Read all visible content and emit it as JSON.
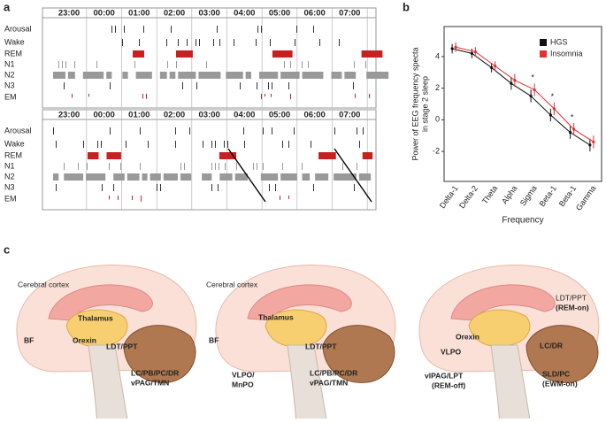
{
  "panel_a": {
    "label": "a",
    "hypnograms": [
      {
        "times": [
          "23:00",
          "00:00",
          "01:00",
          "02:00",
          "03:00",
          "04:00",
          "05:00",
          "06:00",
          "07:00"
        ],
        "rows": [
          "Arousal",
          "Wake",
          "REM",
          "N1",
          "N2",
          "N3",
          "EM"
        ]
      },
      {
        "times": [
          "23:00",
          "00:00",
          "01:00",
          "02:00",
          "03:00",
          "04:00",
          "05:00",
          "06:00",
          "07:00"
        ],
        "rows": [
          "Arousal",
          "Wake",
          "REM",
          "N1",
          "N2",
          "N3",
          "EM"
        ]
      }
    ]
  },
  "chart_data": {
    "type": "line",
    "panel_label": "b",
    "ylabel": [
      "Power of EEG frequency specta",
      "in stage 2 sleep"
    ],
    "xlabel": "Frequency",
    "categories": [
      "Delta-1",
      "Delta-2",
      "Theta",
      "Alpha",
      "Sigma",
      "Beta-1",
      "Beta-1",
      "Gamma"
    ],
    "series": [
      {
        "name": "HGS",
        "color": "#111111",
        "values": [
          4.5,
          4.2,
          3.3,
          2.3,
          1.5,
          0.3,
          -0.8,
          -1.6
        ],
        "errors": [
          0.3,
          0.3,
          0.3,
          0.4,
          0.4,
          0.4,
          0.4,
          0.4
        ]
      },
      {
        "name": "Insomnia",
        "color": "#e03030",
        "values": [
          4.6,
          4.3,
          3.4,
          2.5,
          1.9,
          0.7,
          -0.6,
          -1.4
        ],
        "errors": [
          0.3,
          0.3,
          0.3,
          0.4,
          0.4,
          0.4,
          0.4,
          0.4
        ]
      }
    ],
    "annotations": [
      {
        "text": "*",
        "category": 4
      },
      {
        "text": "*",
        "category": 5
      },
      {
        "text": "*",
        "category": 6
      }
    ],
    "ylim": [
      -3.9,
      5.9
    ],
    "yticks": [
      -2,
      0,
      2,
      4
    ],
    "legend": "top-right"
  },
  "panel_c": {
    "label": "c",
    "diagrams": [
      {
        "labels": [
          "Cerebral cortex",
          "Thalamus",
          "BF",
          "Orexin",
          "LDT/PPT",
          "LC/PB/PC/DR",
          "vPAG/TMN"
        ]
      },
      {
        "labels": [
          "Cerebral cortex",
          "Thalamus",
          "BF",
          "LDT/PPT",
          "VLPO/",
          "MnPO",
          "LC/PB/PC/DR",
          "vPAG/TMN"
        ]
      },
      {
        "labels": [
          "LDT/PPT",
          "(REM-on)",
          "VLPO",
          "Orexin",
          "LC/DR",
          "vlPAG/LPT",
          "(REM-off)",
          "SLD/PC",
          "(EWM-on)"
        ]
      }
    ]
  }
}
